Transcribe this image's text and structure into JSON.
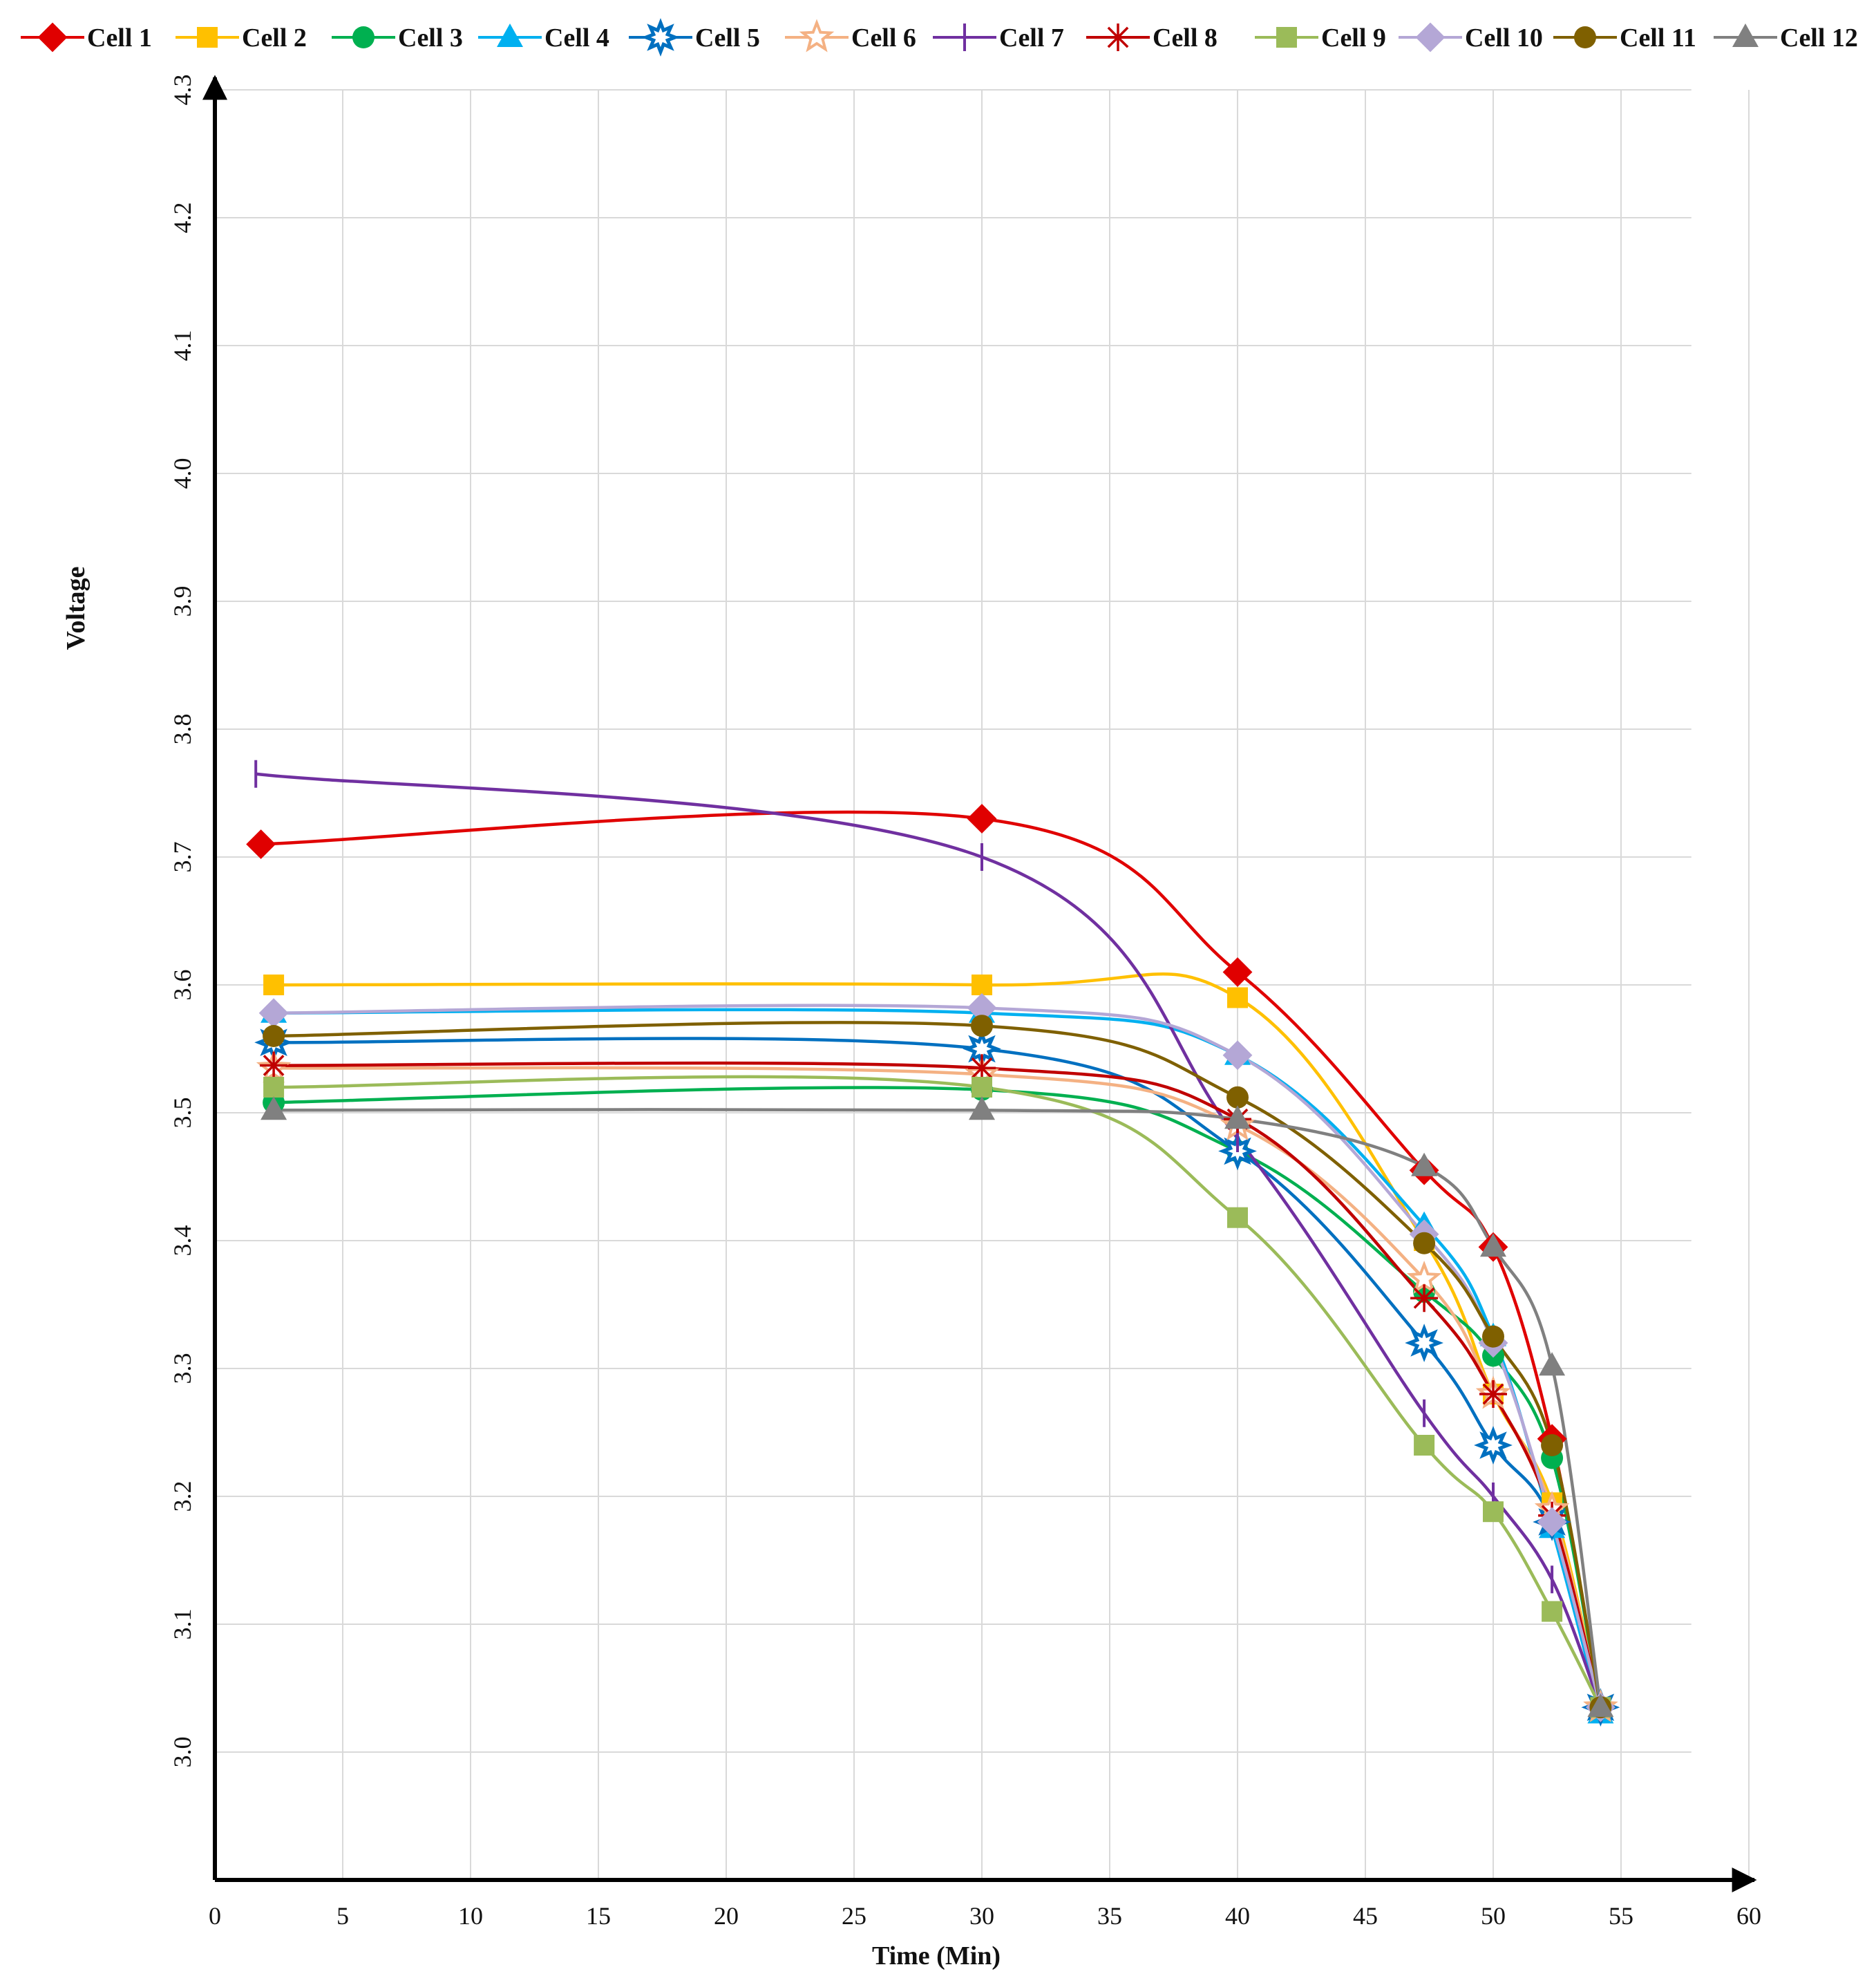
{
  "chart_data": {
    "type": "line",
    "title": "",
    "xlabel": "Time (Min)",
    "ylabel": "Voltage",
    "xlim": [
      0,
      60
    ],
    "ylim": [
      2.9,
      4.3
    ],
    "xticks": [
      "0",
      "5",
      "10",
      "15",
      "20",
      "25",
      "30",
      "35",
      "40",
      "45",
      "50",
      "55",
      "60"
    ],
    "yticks": [
      "3.0",
      "3.1",
      "3.2",
      "3.3",
      "3.4",
      "3.5",
      "3.6",
      "3.7",
      "3.8",
      "3.9",
      "4.0",
      "4.1",
      "4.2",
      "4.3"
    ],
    "grid": true,
    "legend_position": "top",
    "series": [
      {
        "name": "Cell 1",
        "color": "#e00000",
        "marker": "diamond",
        "x": [
          1.8,
          30,
          40,
          47.3,
          50,
          52.3,
          54.2
        ],
        "values": [
          3.71,
          3.73,
          3.61,
          3.455,
          3.395,
          3.245,
          3.035
        ]
      },
      {
        "name": "Cell 2",
        "color": "#ffc000",
        "marker": "square",
        "x": [
          2.3,
          30,
          40,
          47.3,
          50,
          52.3,
          54.2
        ],
        "values": [
          3.6,
          3.6,
          3.59,
          3.4,
          3.28,
          3.195,
          3.035
        ]
      },
      {
        "name": "Cell 3",
        "color": "#00b050",
        "marker": "circle",
        "x": [
          2.3,
          30,
          40,
          47.3,
          50,
          52.3,
          54.2
        ],
        "values": [
          3.508,
          3.518,
          3.47,
          3.36,
          3.31,
          3.23,
          3.035
        ]
      },
      {
        "name": "Cell 4",
        "color": "#00b0f0",
        "marker": "triangle",
        "x": [
          2.3,
          30,
          40,
          47.3,
          50,
          52.3,
          54.2
        ],
        "values": [
          3.578,
          3.578,
          3.545,
          3.412,
          3.325,
          3.175,
          3.03
        ]
      },
      {
        "name": "Cell 5",
        "color": "#0070c0",
        "marker": "star8",
        "x": [
          2.3,
          30,
          40,
          47.3,
          50,
          52.3,
          54.2
        ],
        "values": [
          3.555,
          3.55,
          3.47,
          3.32,
          3.24,
          3.18,
          3.035
        ]
      },
      {
        "name": "Cell 6",
        "color": "#f4b183",
        "marker": "star5",
        "x": [
          2.3,
          30,
          40,
          47.3,
          50,
          52.3,
          54.2
        ],
        "values": [
          3.535,
          3.53,
          3.49,
          3.37,
          3.28,
          3.19,
          3.035
        ]
      },
      {
        "name": "Cell 7",
        "color": "#7030a0",
        "marker": "bar",
        "x": [
          1.6,
          30,
          40,
          47.3,
          50,
          52.3,
          54.2
        ],
        "values": [
          3.765,
          3.7,
          3.48,
          3.265,
          3.2,
          3.135,
          3.035
        ]
      },
      {
        "name": "Cell 8",
        "color": "#c00000",
        "marker": "asterisk",
        "x": [
          2.3,
          30,
          40,
          47.3,
          50,
          52.3,
          54.2
        ],
        "values": [
          3.537,
          3.535,
          3.495,
          3.355,
          3.28,
          3.185,
          3.035
        ]
      },
      {
        "name": "Cell 9",
        "color": "#9bbb59",
        "marker": "square",
        "x": [
          2.3,
          30,
          40,
          47.3,
          50,
          52.3,
          54.2
        ],
        "values": [
          3.52,
          3.52,
          3.418,
          3.24,
          3.188,
          3.11,
          3.035
        ]
      },
      {
        "name": "Cell 10",
        "color": "#b4a7d6",
        "marker": "diamond",
        "x": [
          2.3,
          30,
          40,
          47.3,
          50,
          52.3,
          54.2
        ],
        "values": [
          3.578,
          3.582,
          3.545,
          3.405,
          3.32,
          3.18,
          3.035
        ]
      },
      {
        "name": "Cell 11",
        "color": "#7f6000",
        "marker": "circle",
        "x": [
          2.3,
          30,
          40,
          47.3,
          50,
          52.3,
          54.2
        ],
        "values": [
          3.56,
          3.568,
          3.512,
          3.398,
          3.325,
          3.24,
          3.035
        ]
      },
      {
        "name": "Cell 12",
        "color": "#808080",
        "marker": "triangle",
        "x": [
          2.3,
          30,
          40,
          47.3,
          50,
          52.3,
          54.2
        ],
        "values": [
          3.502,
          3.502,
          3.495,
          3.458,
          3.395,
          3.302,
          3.035
        ]
      }
    ]
  }
}
